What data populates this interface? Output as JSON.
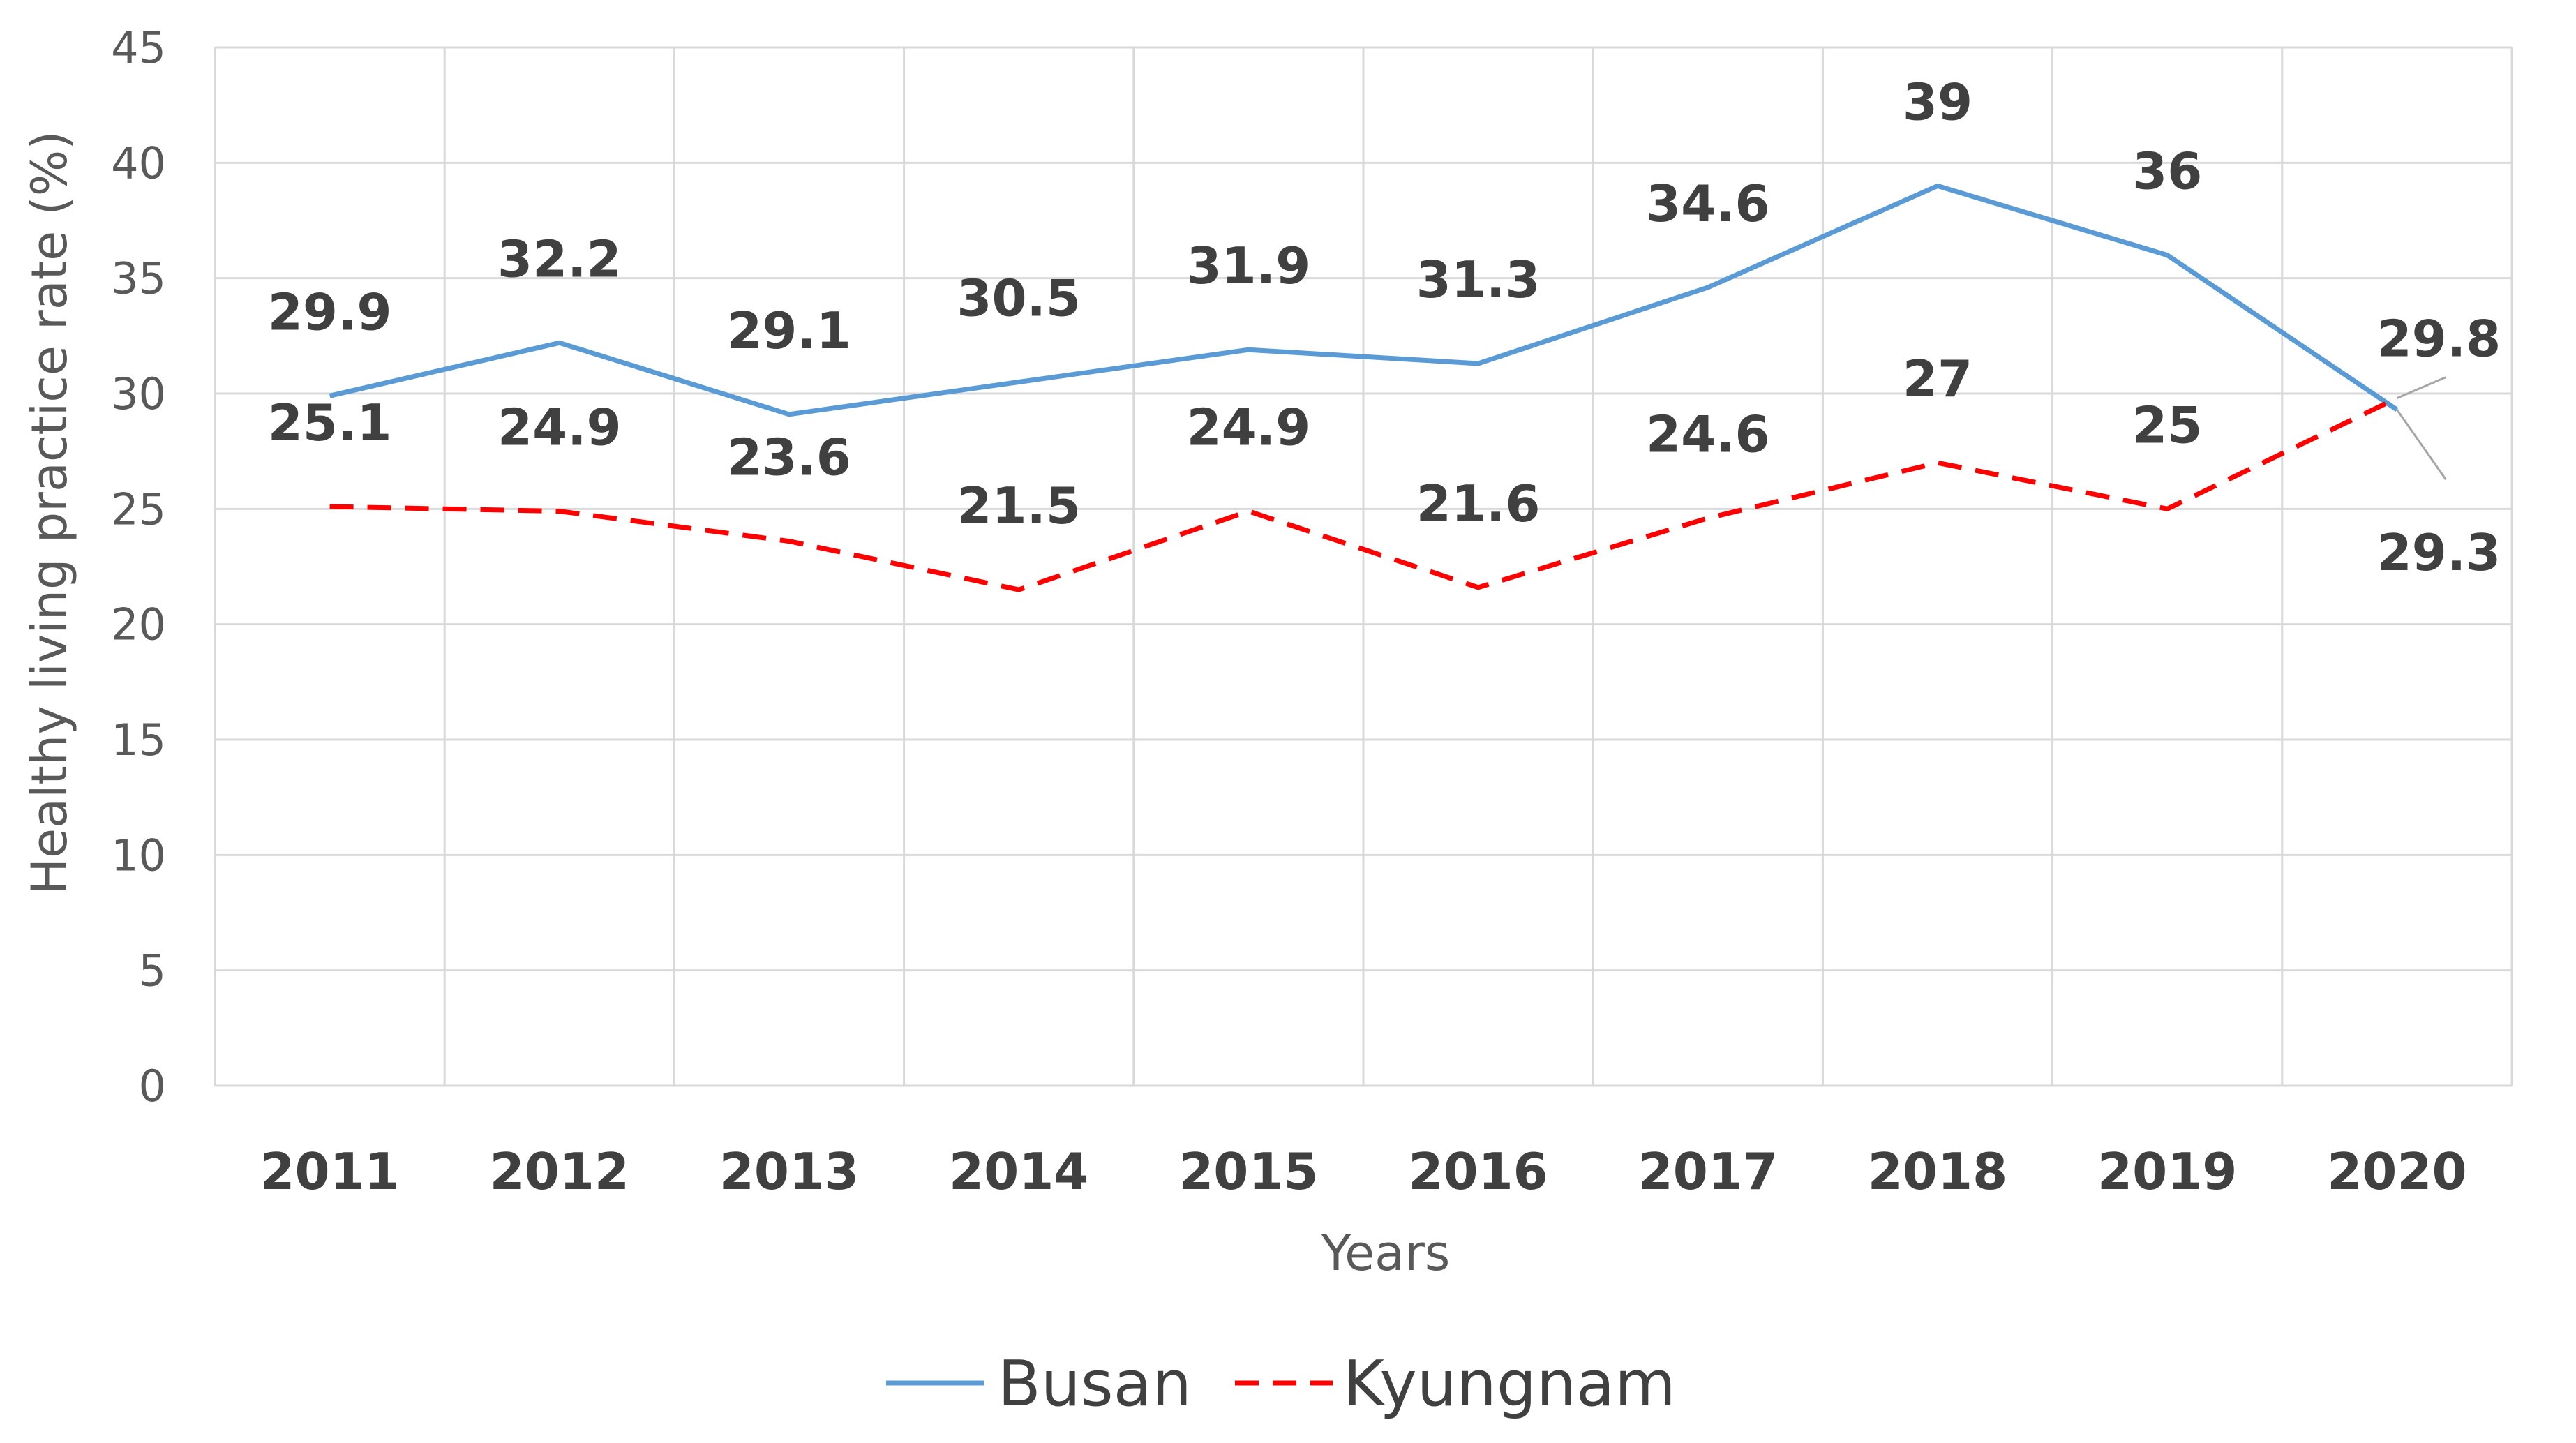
{
  "chart_data": {
    "type": "line",
    "title": "",
    "xlabel": "Years",
    "ylabel": "Healthy living practice rate (%)",
    "ylim": [
      0,
      45
    ],
    "yticks": [
      0,
      5,
      10,
      15,
      20,
      25,
      30,
      35,
      40,
      45
    ],
    "grid": true,
    "legend_position": "bottom",
    "categories": [
      "2011",
      "2012",
      "2013",
      "2014",
      "2015",
      "2016",
      "2017",
      "2018",
      "2019",
      "2020"
    ],
    "series": [
      {
        "name": "Busan",
        "color": "#5b9bd5",
        "dash": "solid",
        "values": [
          29.9,
          32.2,
          29.1,
          30.5,
          31.9,
          31.3,
          34.6,
          39,
          36,
          29.3
        ],
        "labels": [
          "29.9",
          "32.2",
          "29.1",
          "30.5",
          "31.9",
          "31.3",
          "34.6",
          "39",
          "36",
          "29.3"
        ]
      },
      {
        "name": "Kyungnam",
        "color": "#ff0000",
        "dash": "dashed",
        "values": [
          25.1,
          24.9,
          23.6,
          21.5,
          24.9,
          21.6,
          24.6,
          27,
          25,
          29.8
        ],
        "labels": [
          "25.1",
          "24.9",
          "23.6",
          "21.5",
          "24.9",
          "21.6",
          "24.6",
          "27",
          "25",
          "29.8"
        ]
      }
    ]
  }
}
